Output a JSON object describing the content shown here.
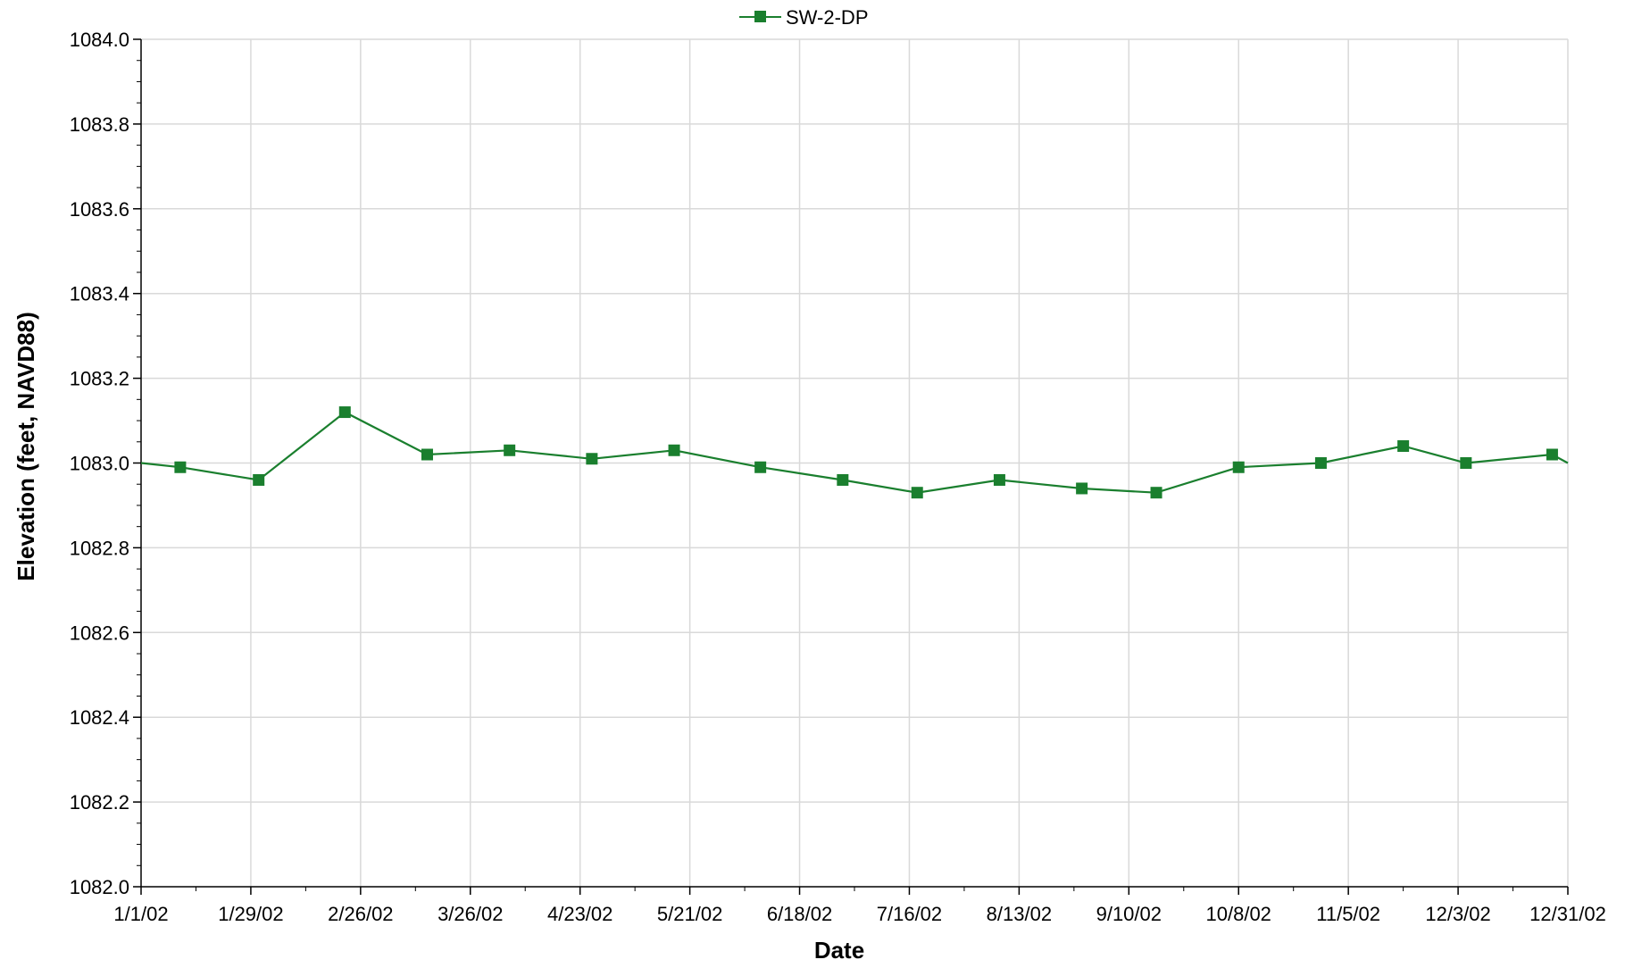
{
  "chart_data": {
    "type": "line",
    "legend": {
      "position": "top-center"
    },
    "xlabel": "Date",
    "ylabel": "Elevation (feet, NAVD88)",
    "xlim": [
      "2002-01-01",
      "2002-12-31"
    ],
    "ylim": [
      1082.0,
      1084.0
    ],
    "grid": true,
    "x_ticks": [
      "1/1/02",
      "1/29/02",
      "2/26/02",
      "3/26/02",
      "4/23/02",
      "5/21/02",
      "6/18/02",
      "7/16/02",
      "8/13/02",
      "9/10/02",
      "10/8/02",
      "11/5/02",
      "12/3/02",
      "12/31/02"
    ],
    "y_ticks": [
      "1082.0",
      "1082.2",
      "1082.4",
      "1082.6",
      "1082.8",
      "1083.0",
      "1083.2",
      "1083.4",
      "1083.6",
      "1083.8",
      "1084.0"
    ],
    "colors": {
      "series": "#1a7f2e",
      "grid": "#d9d9d9",
      "axis": "#000000"
    },
    "series": [
      {
        "name": "SW-2-DP",
        "marker": "square",
        "points": [
          {
            "x": "2002-01-01",
            "y": 1083.0
          },
          {
            "x": "2002-01-11",
            "y": 1082.99
          },
          {
            "x": "2002-01-31",
            "y": 1082.96
          },
          {
            "x": "2002-02-22",
            "y": 1083.12
          },
          {
            "x": "2002-03-15",
            "y": 1083.02
          },
          {
            "x": "2002-04-05",
            "y": 1083.03
          },
          {
            "x": "2002-04-26",
            "y": 1083.01
          },
          {
            "x": "2002-05-17",
            "y": 1083.03
          },
          {
            "x": "2002-06-08",
            "y": 1082.99
          },
          {
            "x": "2002-06-29",
            "y": 1082.96
          },
          {
            "x": "2002-07-18",
            "y": 1082.93
          },
          {
            "x": "2002-08-08",
            "y": 1082.96
          },
          {
            "x": "2002-08-29",
            "y": 1082.94
          },
          {
            "x": "2002-09-17",
            "y": 1082.93
          },
          {
            "x": "2002-10-08",
            "y": 1082.99
          },
          {
            "x": "2002-10-29",
            "y": 1083.0
          },
          {
            "x": "2002-11-19",
            "y": 1083.04
          },
          {
            "x": "2002-12-05",
            "y": 1083.0
          },
          {
            "x": "2002-12-27",
            "y": 1083.02
          },
          {
            "x": "2002-12-31",
            "y": 1083.0
          }
        ]
      }
    ]
  }
}
